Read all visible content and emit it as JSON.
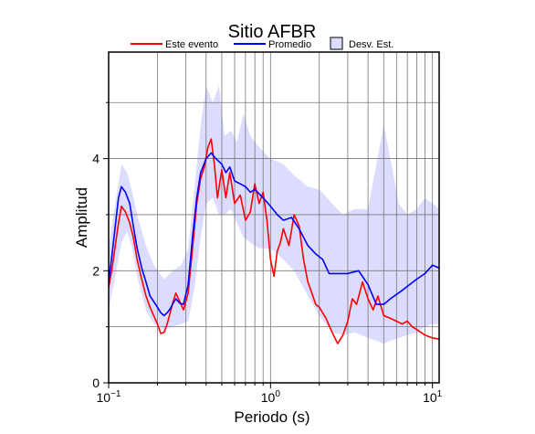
{
  "chart_data": {
    "type": "line",
    "title": "Sitio AFBR",
    "xlabel": "Periodo (s)",
    "ylabel": "Amplitud",
    "x_scale": "log",
    "xlim": [
      0.1,
      11
    ],
    "ylim": [
      0,
      5.9
    ],
    "x_ticks": [
      {
        "value": 0.1,
        "base": "10",
        "exp": "−1"
      },
      {
        "value": 1,
        "base": "10",
        "exp": "0"
      },
      {
        "value": 10,
        "base": "10",
        "exp": "1"
      }
    ],
    "y_ticks": [
      0,
      2,
      4
    ],
    "grid": true,
    "legend": {
      "placement": "top",
      "entries": [
        {
          "label": "Este evento",
          "kind": "line",
          "color": "#ff0000"
        },
        {
          "label": "Promedio",
          "kind": "line",
          "color": "#0000ff"
        },
        {
          "label": "Desv. Est.",
          "kind": "band",
          "color": "#dcdcff"
        }
      ]
    },
    "series": [
      {
        "name": "Este evento",
        "color": "#ff0000",
        "points": [
          [
            0.1,
            1.7
          ],
          [
            0.105,
            2.05
          ],
          [
            0.11,
            2.45
          ],
          [
            0.115,
            2.85
          ],
          [
            0.12,
            3.15
          ],
          [
            0.127,
            3.05
          ],
          [
            0.135,
            2.85
          ],
          [
            0.142,
            2.6
          ],
          [
            0.15,
            2.2
          ],
          [
            0.16,
            1.85
          ],
          [
            0.17,
            1.55
          ],
          [
            0.18,
            1.35
          ],
          [
            0.19,
            1.2
          ],
          [
            0.2,
            1.05
          ],
          [
            0.21,
            0.88
          ],
          [
            0.22,
            0.9
          ],
          [
            0.23,
            1.05
          ],
          [
            0.24,
            1.25
          ],
          [
            0.25,
            1.45
          ],
          [
            0.26,
            1.6
          ],
          [
            0.275,
            1.45
          ],
          [
            0.29,
            1.3
          ],
          [
            0.31,
            1.6
          ],
          [
            0.33,
            2.4
          ],
          [
            0.35,
            3.2
          ],
          [
            0.37,
            3.65
          ],
          [
            0.39,
            3.85
          ],
          [
            0.41,
            4.2
          ],
          [
            0.43,
            4.35
          ],
          [
            0.45,
            3.9
          ],
          [
            0.47,
            3.3
          ],
          [
            0.5,
            3.8
          ],
          [
            0.53,
            3.3
          ],
          [
            0.56,
            3.75
          ],
          [
            0.6,
            3.2
          ],
          [
            0.65,
            3.35
          ],
          [
            0.7,
            2.9
          ],
          [
            0.75,
            3.05
          ],
          [
            0.8,
            3.55
          ],
          [
            0.85,
            3.2
          ],
          [
            0.9,
            3.4
          ],
          [
            0.95,
            2.9
          ],
          [
            1.0,
            2.2
          ],
          [
            1.05,
            1.9
          ],
          [
            1.1,
            2.35
          ],
          [
            1.15,
            2.5
          ],
          [
            1.2,
            2.75
          ],
          [
            1.3,
            2.45
          ],
          [
            1.4,
            3.0
          ],
          [
            1.5,
            2.8
          ],
          [
            1.6,
            2.2
          ],
          [
            1.7,
            1.8
          ],
          [
            1.8,
            1.6
          ],
          [
            1.9,
            1.4
          ],
          [
            2.0,
            1.35
          ],
          [
            2.2,
            1.15
          ],
          [
            2.4,
            0.9
          ],
          [
            2.6,
            0.7
          ],
          [
            2.8,
            0.85
          ],
          [
            3.0,
            1.1
          ],
          [
            3.2,
            1.5
          ],
          [
            3.4,
            1.4
          ],
          [
            3.7,
            1.8
          ],
          [
            4.0,
            1.5
          ],
          [
            4.3,
            1.3
          ],
          [
            4.6,
            1.55
          ],
          [
            5.0,
            1.2
          ],
          [
            5.5,
            1.15
          ],
          [
            6.0,
            1.1
          ],
          [
            6.5,
            1.05
          ],
          [
            7.0,
            1.1
          ],
          [
            7.5,
            1.0
          ],
          [
            8.0,
            0.95
          ],
          [
            9.0,
            0.85
          ],
          [
            10.0,
            0.8
          ],
          [
            11.0,
            0.78
          ]
        ]
      },
      {
        "name": "Promedio",
        "color": "#0000ff",
        "points": [
          [
            0.1,
            1.8
          ],
          [
            0.105,
            2.3
          ],
          [
            0.11,
            2.8
          ],
          [
            0.115,
            3.3
          ],
          [
            0.12,
            3.5
          ],
          [
            0.127,
            3.4
          ],
          [
            0.135,
            3.2
          ],
          [
            0.142,
            2.8
          ],
          [
            0.15,
            2.4
          ],
          [
            0.16,
            2.05
          ],
          [
            0.17,
            1.8
          ],
          [
            0.18,
            1.55
          ],
          [
            0.19,
            1.45
          ],
          [
            0.2,
            1.35
          ],
          [
            0.21,
            1.25
          ],
          [
            0.22,
            1.2
          ],
          [
            0.23,
            1.25
          ],
          [
            0.24,
            1.32
          ],
          [
            0.25,
            1.42
          ],
          [
            0.26,
            1.5
          ],
          [
            0.275,
            1.42
          ],
          [
            0.29,
            1.4
          ],
          [
            0.31,
            1.75
          ],
          [
            0.33,
            2.6
          ],
          [
            0.35,
            3.3
          ],
          [
            0.37,
            3.75
          ],
          [
            0.4,
            4.0
          ],
          [
            0.43,
            4.1
          ],
          [
            0.46,
            4.0
          ],
          [
            0.5,
            3.9
          ],
          [
            0.53,
            3.75
          ],
          [
            0.56,
            3.85
          ],
          [
            0.6,
            3.6
          ],
          [
            0.65,
            3.55
          ],
          [
            0.7,
            3.5
          ],
          [
            0.75,
            3.4
          ],
          [
            0.8,
            3.45
          ],
          [
            0.9,
            3.3
          ],
          [
            1.0,
            3.15
          ],
          [
            1.1,
            3.0
          ],
          [
            1.2,
            2.9
          ],
          [
            1.35,
            2.95
          ],
          [
            1.5,
            2.75
          ],
          [
            1.7,
            2.45
          ],
          [
            1.9,
            2.3
          ],
          [
            2.1,
            2.2
          ],
          [
            2.3,
            1.95
          ],
          [
            2.6,
            1.95
          ],
          [
            3.0,
            1.95
          ],
          [
            3.5,
            2.0
          ],
          [
            4.0,
            1.75
          ],
          [
            4.5,
            1.4
          ],
          [
            5.0,
            1.4
          ],
          [
            5.5,
            1.5
          ],
          [
            6.5,
            1.65
          ],
          [
            8.0,
            1.85
          ],
          [
            9.0,
            1.95
          ],
          [
            10.0,
            2.1
          ],
          [
            11.0,
            2.05
          ]
        ]
      }
    ],
    "std_band": {
      "name": "Desv. Est.",
      "color": "#dcdcff",
      "upper": [
        [
          0.1,
          2.4
        ],
        [
          0.11,
          3.2
        ],
        [
          0.12,
          3.9
        ],
        [
          0.13,
          3.75
        ],
        [
          0.14,
          3.4
        ],
        [
          0.15,
          3.0
        ],
        [
          0.17,
          2.45
        ],
        [
          0.19,
          2.1
        ],
        [
          0.22,
          1.85
        ],
        [
          0.25,
          2.0
        ],
        [
          0.28,
          2.1
        ],
        [
          0.31,
          2.4
        ],
        [
          0.34,
          3.5
        ],
        [
          0.37,
          4.6
        ],
        [
          0.4,
          5.3
        ],
        [
          0.44,
          5.0
        ],
        [
          0.48,
          5.3
        ],
        [
          0.52,
          4.4
        ],
        [
          0.57,
          4.5
        ],
        [
          0.62,
          4.3
        ],
        [
          0.68,
          4.8
        ],
        [
          0.75,
          4.4
        ],
        [
          0.85,
          4.2
        ],
        [
          1.0,
          4.0
        ],
        [
          1.2,
          3.9
        ],
        [
          1.4,
          3.7
        ],
        [
          1.7,
          3.5
        ],
        [
          2.0,
          3.45
        ],
        [
          2.4,
          3.2
        ],
        [
          2.8,
          3.0
        ],
        [
          3.3,
          3.1
        ],
        [
          4.0,
          3.1
        ],
        [
          4.5,
          3.9
        ],
        [
          5.0,
          4.6
        ],
        [
          5.5,
          4.0
        ],
        [
          6.2,
          3.2
        ],
        [
          7.0,
          3.0
        ],
        [
          8.0,
          3.1
        ],
        [
          9.0,
          3.3
        ],
        [
          10.0,
          3.2
        ],
        [
          11.0,
          3.1
        ]
      ],
      "lower": [
        [
          0.1,
          1.3
        ],
        [
          0.11,
          1.9
        ],
        [
          0.12,
          2.5
        ],
        [
          0.13,
          2.7
        ],
        [
          0.14,
          2.4
        ],
        [
          0.15,
          1.9
        ],
        [
          0.17,
          1.3
        ],
        [
          0.19,
          1.05
        ],
        [
          0.22,
          0.95
        ],
        [
          0.25,
          1.0
        ],
        [
          0.28,
          1.05
        ],
        [
          0.31,
          1.1
        ],
        [
          0.34,
          1.7
        ],
        [
          0.37,
          2.6
        ],
        [
          0.4,
          3.2
        ],
        [
          0.44,
          3.3
        ],
        [
          0.48,
          3.0
        ],
        [
          0.52,
          3.0
        ],
        [
          0.57,
          3.1
        ],
        [
          0.62,
          2.85
        ],
        [
          0.68,
          2.6
        ],
        [
          0.75,
          2.5
        ],
        [
          0.85,
          2.4
        ],
        [
          1.0,
          2.4
        ],
        [
          1.2,
          2.2
        ],
        [
          1.4,
          2.0
        ],
        [
          1.7,
          1.55
        ],
        [
          2.0,
          1.2
        ],
        [
          2.4,
          0.9
        ],
        [
          2.8,
          0.85
        ],
        [
          3.3,
          0.9
        ],
        [
          4.0,
          0.8
        ],
        [
          4.5,
          0.75
        ],
        [
          5.0,
          0.7
        ],
        [
          5.5,
          0.75
        ],
        [
          6.2,
          0.8
        ],
        [
          7.0,
          0.85
        ],
        [
          8.0,
          0.9
        ],
        [
          9.0,
          1.0
        ],
        [
          10.0,
          1.05
        ],
        [
          11.0,
          1.05
        ]
      ]
    }
  }
}
